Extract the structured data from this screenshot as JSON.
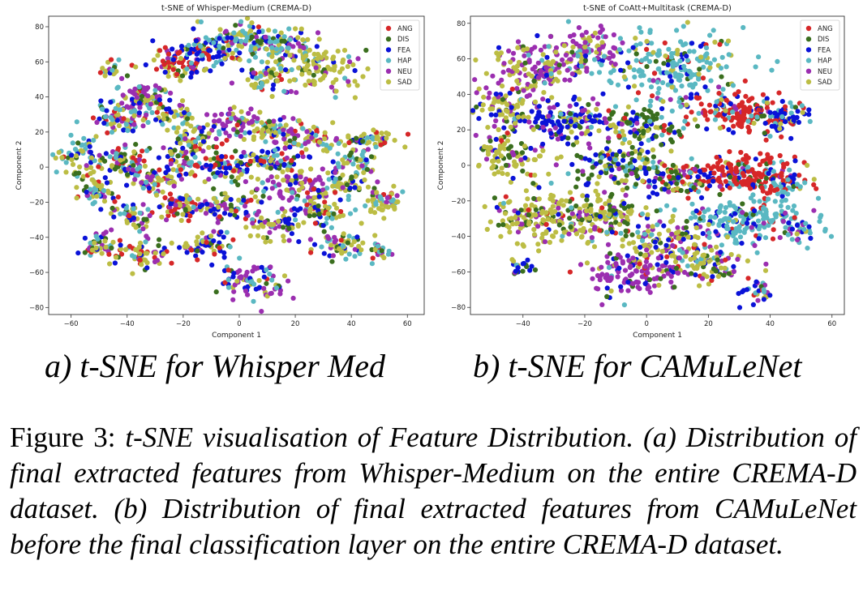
{
  "subcaptions": {
    "a": "a) t-SNE for Whisper Med",
    "b": "b) t-SNE for CAMuLeNet"
  },
  "caption": {
    "label": "Figure 3:",
    "text": "t-SNE visualisation of Feature Distribution. (a) Distribution of final extracted features from Whisper-Medium on the entire CREMA-D dataset. (b) Distribution of final extracted features from CAMuLeNet before the final classification layer on the entire CREMA-D dataset."
  },
  "chart_data": [
    {
      "type": "scatter",
      "title": "t-SNE of Whisper-Medium (CREMA-D)",
      "xlabel": "Component 1",
      "ylabel": "Component 2",
      "xlim": [
        -68,
        66
      ],
      "ylim": [
        -84,
        86
      ],
      "xticks": [
        -60,
        -40,
        -20,
        0,
        20,
        40,
        60
      ],
      "yticks": [
        -80,
        -60,
        -40,
        -20,
        0,
        20,
        40,
        60,
        80
      ],
      "legend": "top-right",
      "grid": false,
      "series": [
        {
          "name": "ANG",
          "color": "#d62728"
        },
        {
          "name": "DIS",
          "color": "#3a6e1e"
        },
        {
          "name": "FEA",
          "color": "#0a12d8"
        },
        {
          "name": "HAP",
          "color": "#5ab8c2"
        },
        {
          "name": "NEU",
          "color": "#9b2eb0"
        },
        {
          "name": "SAD",
          "color": "#bcbd44"
        }
      ],
      "clusters": [
        {
          "x": -22,
          "y": 58,
          "sx": 5,
          "sy": 4,
          "n": 70,
          "mix": [
            0.45,
            0.05,
            0.15,
            0.05,
            0.1,
            0.2
          ]
        },
        {
          "x": -12,
          "y": 65,
          "sx": 6,
          "sy": 5,
          "n": 80,
          "mix": [
            0.1,
            0.05,
            0.5,
            0.15,
            0.1,
            0.1
          ]
        },
        {
          "x": 0,
          "y": 72,
          "sx": 8,
          "sy": 5,
          "n": 100,
          "mix": [
            0.05,
            0.1,
            0.15,
            0.4,
            0.1,
            0.2
          ]
        },
        {
          "x": 15,
          "y": 68,
          "sx": 6,
          "sy": 5,
          "n": 80,
          "mix": [
            0.05,
            0.1,
            0.1,
            0.25,
            0.15,
            0.35
          ]
        },
        {
          "x": 30,
          "y": 55,
          "sx": 7,
          "sy": 7,
          "n": 100,
          "mix": [
            0.05,
            0.1,
            0.05,
            0.1,
            0.1,
            0.6
          ]
        },
        {
          "x": 10,
          "y": 50,
          "sx": 5,
          "sy": 4,
          "n": 50,
          "mix": [
            0.1,
            0.1,
            0.1,
            0.15,
            0.15,
            0.4
          ]
        },
        {
          "x": -35,
          "y": 40,
          "sx": 5,
          "sy": 4,
          "n": 70,
          "mix": [
            0.05,
            0.1,
            0.1,
            0.1,
            0.45,
            0.2
          ]
        },
        {
          "x": -42,
          "y": 28,
          "sx": 5,
          "sy": 5,
          "n": 80,
          "mix": [
            0.1,
            0.1,
            0.2,
            0.25,
            0.15,
            0.2
          ]
        },
        {
          "x": -25,
          "y": 30,
          "sx": 4,
          "sy": 4,
          "n": 50,
          "mix": [
            0.05,
            0.05,
            0.15,
            0.1,
            0.15,
            0.5
          ]
        },
        {
          "x": -15,
          "y": 18,
          "sx": 4,
          "sy": 4,
          "n": 50,
          "mix": [
            0.1,
            0.1,
            0.2,
            0.2,
            0.1,
            0.3
          ]
        },
        {
          "x": -3,
          "y": 25,
          "sx": 5,
          "sy": 4,
          "n": 60,
          "mix": [
            0.05,
            0.05,
            0.05,
            0.1,
            0.5,
            0.25
          ]
        },
        {
          "x": 12,
          "y": 22,
          "sx": 5,
          "sy": 4,
          "n": 60,
          "mix": [
            0.05,
            0.05,
            0.15,
            0.2,
            0.15,
            0.4
          ]
        },
        {
          "x": 25,
          "y": 15,
          "sx": 6,
          "sy": 4,
          "n": 70,
          "mix": [
            0.1,
            0.05,
            0.05,
            0.15,
            0.25,
            0.4
          ]
        },
        {
          "x": 47,
          "y": 16,
          "sx": 5,
          "sy": 3,
          "n": 50,
          "mix": [
            0.1,
            0.1,
            0.05,
            0.2,
            0.1,
            0.45
          ]
        },
        {
          "x": 42,
          "y": 3,
          "sx": 5,
          "sy": 4,
          "n": 50,
          "mix": [
            0.05,
            0.1,
            0.1,
            0.3,
            0.15,
            0.3
          ]
        },
        {
          "x": -55,
          "y": 5,
          "sx": 5,
          "sy": 6,
          "n": 70,
          "mix": [
            0.1,
            0.1,
            0.1,
            0.2,
            0.1,
            0.4
          ]
        },
        {
          "x": -40,
          "y": 3,
          "sx": 5,
          "sy": 5,
          "n": 70,
          "mix": [
            0.1,
            0.15,
            0.15,
            0.15,
            0.2,
            0.25
          ]
        },
        {
          "x": -30,
          "y": -8,
          "sx": 5,
          "sy": 4,
          "n": 60,
          "mix": [
            0.1,
            0.05,
            0.1,
            0.1,
            0.35,
            0.3
          ]
        },
        {
          "x": -20,
          "y": 5,
          "sx": 4,
          "sy": 4,
          "n": 50,
          "mix": [
            0.15,
            0.1,
            0.2,
            0.15,
            0.15,
            0.25
          ]
        },
        {
          "x": -5,
          "y": 0,
          "sx": 6,
          "sy": 5,
          "n": 80,
          "mix": [
            0.2,
            0.15,
            0.2,
            0.15,
            0.1,
            0.2
          ]
        },
        {
          "x": 10,
          "y": 5,
          "sx": 5,
          "sy": 4,
          "n": 60,
          "mix": [
            0.15,
            0.1,
            0.25,
            0.2,
            0.1,
            0.2
          ]
        },
        {
          "x": 18,
          "y": -10,
          "sx": 6,
          "sy": 5,
          "n": 80,
          "mix": [
            0.05,
            0.05,
            0.05,
            0.1,
            0.5,
            0.25
          ]
        },
        {
          "x": 35,
          "y": -10,
          "sx": 5,
          "sy": 4,
          "n": 60,
          "mix": [
            0.05,
            0.1,
            0.1,
            0.15,
            0.2,
            0.4
          ]
        },
        {
          "x": 52,
          "y": -20,
          "sx": 4,
          "sy": 4,
          "n": 50,
          "mix": [
            0.05,
            0.1,
            0.05,
            0.25,
            0.1,
            0.45
          ]
        },
        {
          "x": -50,
          "y": -15,
          "sx": 4,
          "sy": 4,
          "n": 50,
          "mix": [
            0.1,
            0.1,
            0.15,
            0.25,
            0.1,
            0.3
          ]
        },
        {
          "x": -38,
          "y": -28,
          "sx": 4,
          "sy": 4,
          "n": 50,
          "mix": [
            0.1,
            0.1,
            0.2,
            0.15,
            0.15,
            0.3
          ]
        },
        {
          "x": -20,
          "y": -22,
          "sx": 5,
          "sy": 4,
          "n": 60,
          "mix": [
            0.2,
            0.1,
            0.1,
            0.1,
            0.2,
            0.3
          ]
        },
        {
          "x": -5,
          "y": -22,
          "sx": 5,
          "sy": 4,
          "n": 60,
          "mix": [
            0.1,
            0.1,
            0.2,
            0.15,
            0.2,
            0.25
          ]
        },
        {
          "x": 12,
          "y": -32,
          "sx": 6,
          "sy": 4,
          "n": 70,
          "mix": [
            0.05,
            0.1,
            0.1,
            0.1,
            0.2,
            0.45
          ]
        },
        {
          "x": 30,
          "y": -25,
          "sx": 5,
          "sy": 4,
          "n": 60,
          "mix": [
            0.1,
            0.1,
            0.15,
            0.2,
            0.15,
            0.3
          ]
        },
        {
          "x": 35,
          "y": -45,
          "sx": 5,
          "sy": 4,
          "n": 60,
          "mix": [
            0.05,
            0.1,
            0.2,
            0.15,
            0.15,
            0.35
          ]
        },
        {
          "x": 50,
          "y": -48,
          "sx": 2,
          "sy": 3,
          "n": 20,
          "mix": [
            0.1,
            0.1,
            0.1,
            0.2,
            0.1,
            0.4
          ]
        },
        {
          "x": -50,
          "y": -45,
          "sx": 4,
          "sy": 4,
          "n": 50,
          "mix": [
            0.25,
            0.15,
            0.1,
            0.1,
            0.1,
            0.3
          ]
        },
        {
          "x": -33,
          "y": -50,
          "sx": 5,
          "sy": 5,
          "n": 60,
          "mix": [
            0.2,
            0.1,
            0.1,
            0.1,
            0.1,
            0.4
          ]
        },
        {
          "x": -12,
          "y": -45,
          "sx": 5,
          "sy": 4,
          "n": 60,
          "mix": [
            0.1,
            0.1,
            0.25,
            0.15,
            0.15,
            0.25
          ]
        },
        {
          "x": 5,
          "y": -65,
          "sx": 7,
          "sy": 5,
          "n": 80,
          "mix": [
            0.05,
            0.1,
            0.25,
            0.2,
            0.3,
            0.1
          ]
        },
        {
          "x": -45,
          "y": 55,
          "sx": 3,
          "sy": 3,
          "n": 20,
          "mix": [
            0.1,
            0.1,
            0.1,
            0.1,
            0.2,
            0.4
          ]
        }
      ]
    },
    {
      "type": "scatter",
      "title": "t-SNE of CoAtt+Multitask (CREMA-D)",
      "xlabel": "Component 1",
      "ylabel": "Component 2",
      "xlim": [
        -57,
        64
      ],
      "ylim": [
        -84,
        84
      ],
      "xticks": [
        -40,
        -20,
        0,
        20,
        40,
        60
      ],
      "yticks": [
        -80,
        -60,
        -40,
        -20,
        0,
        20,
        40,
        60,
        80
      ],
      "legend": "top-right",
      "grid": false,
      "series": [
        {
          "name": "ANG",
          "color": "#d62728"
        },
        {
          "name": "DIS",
          "color": "#3a6e1e"
        },
        {
          "name": "FEA",
          "color": "#0a12d8"
        },
        {
          "name": "HAP",
          "color": "#5ab8c2"
        },
        {
          "name": "NEU",
          "color": "#9b2eb0"
        },
        {
          "name": "SAD",
          "color": "#bcbd44"
        }
      ],
      "clusters": [
        {
          "x": -35,
          "y": 55,
          "sx": 8,
          "sy": 7,
          "n": 140,
          "mix": [
            0.02,
            0.05,
            0.08,
            0.1,
            0.45,
            0.3
          ]
        },
        {
          "x": -18,
          "y": 65,
          "sx": 7,
          "sy": 6,
          "n": 100,
          "mix": [
            0.02,
            0.05,
            0.05,
            0.1,
            0.48,
            0.3
          ]
        },
        {
          "x": -45,
          "y": 32,
          "sx": 6,
          "sy": 7,
          "n": 100,
          "mix": [
            0.02,
            0.05,
            0.1,
            0.05,
            0.18,
            0.6
          ]
        },
        {
          "x": -25,
          "y": 25,
          "sx": 8,
          "sy": 6,
          "n": 150,
          "mix": [
            0.03,
            0.1,
            0.45,
            0.07,
            0.15,
            0.2
          ]
        },
        {
          "x": -2,
          "y": 22,
          "sx": 6,
          "sy": 6,
          "n": 90,
          "mix": [
            0.02,
            0.5,
            0.13,
            0.05,
            0.1,
            0.2
          ]
        },
        {
          "x": 10,
          "y": 55,
          "sx": 12,
          "sy": 12,
          "n": 220,
          "mix": [
            0.04,
            0.05,
            0.08,
            0.63,
            0.05,
            0.15
          ]
        },
        {
          "x": 30,
          "y": 30,
          "sx": 8,
          "sy": 5,
          "n": 160,
          "mix": [
            0.65,
            0.05,
            0.1,
            0.1,
            0.05,
            0.05
          ]
        },
        {
          "x": 45,
          "y": 25,
          "sx": 4,
          "sy": 5,
          "n": 60,
          "mix": [
            0.15,
            0.05,
            0.55,
            0.15,
            0.05,
            0.05
          ]
        },
        {
          "x": -45,
          "y": 5,
          "sx": 6,
          "sy": 7,
          "n": 90,
          "mix": [
            0.02,
            0.15,
            0.08,
            0.05,
            0.1,
            0.6
          ]
        },
        {
          "x": -10,
          "y": 0,
          "sx": 8,
          "sy": 6,
          "n": 130,
          "mix": [
            0.02,
            0.3,
            0.2,
            0.08,
            0.1,
            0.3
          ]
        },
        {
          "x": 8,
          "y": -8,
          "sx": 6,
          "sy": 5,
          "n": 80,
          "mix": [
            0.05,
            0.4,
            0.2,
            0.05,
            0.15,
            0.15
          ]
        },
        {
          "x": 32,
          "y": -5,
          "sx": 10,
          "sy": 6,
          "n": 200,
          "mix": [
            0.72,
            0.05,
            0.1,
            0.08,
            0.02,
            0.03
          ]
        },
        {
          "x": 30,
          "y": -30,
          "sx": 10,
          "sy": 7,
          "n": 200,
          "mix": [
            0.05,
            0.05,
            0.1,
            0.7,
            0.05,
            0.05
          ]
        },
        {
          "x": -35,
          "y": -30,
          "sx": 8,
          "sy": 8,
          "n": 160,
          "mix": [
            0.02,
            0.15,
            0.05,
            0.05,
            0.08,
            0.65
          ]
        },
        {
          "x": -15,
          "y": -30,
          "sx": 8,
          "sy": 7,
          "n": 140,
          "mix": [
            0.02,
            0.15,
            0.1,
            0.05,
            0.18,
            0.5
          ]
        },
        {
          "x": 5,
          "y": -45,
          "sx": 8,
          "sy": 8,
          "n": 130,
          "mix": [
            0.05,
            0.1,
            0.2,
            0.05,
            0.2,
            0.4
          ]
        },
        {
          "x": -5,
          "y": -62,
          "sx": 7,
          "sy": 6,
          "n": 110,
          "mix": [
            0.05,
            0.05,
            0.08,
            0.05,
            0.72,
            0.05
          ]
        },
        {
          "x": 20,
          "y": -55,
          "sx": 6,
          "sy": 6,
          "n": 90,
          "mix": [
            0.05,
            0.1,
            0.15,
            0.1,
            0.2,
            0.4
          ]
        },
        {
          "x": 35,
          "y": -70,
          "sx": 3,
          "sy": 3,
          "n": 30,
          "mix": [
            0.05,
            0.05,
            0.3,
            0.3,
            0.2,
            0.1
          ]
        },
        {
          "x": -40,
          "y": -58,
          "sx": 3,
          "sy": 2,
          "n": 20,
          "mix": [
            0.05,
            0.1,
            0.3,
            0.25,
            0.1,
            0.2
          ]
        },
        {
          "x": 45,
          "y": -10,
          "sx": 4,
          "sy": 4,
          "n": 40,
          "mix": [
            0.3,
            0.05,
            0.2,
            0.35,
            0.05,
            0.05
          ]
        },
        {
          "x": 50,
          "y": -35,
          "sx": 4,
          "sy": 4,
          "n": 30,
          "mix": [
            0.05,
            0.05,
            0.2,
            0.5,
            0.1,
            0.1
          ]
        }
      ]
    }
  ]
}
